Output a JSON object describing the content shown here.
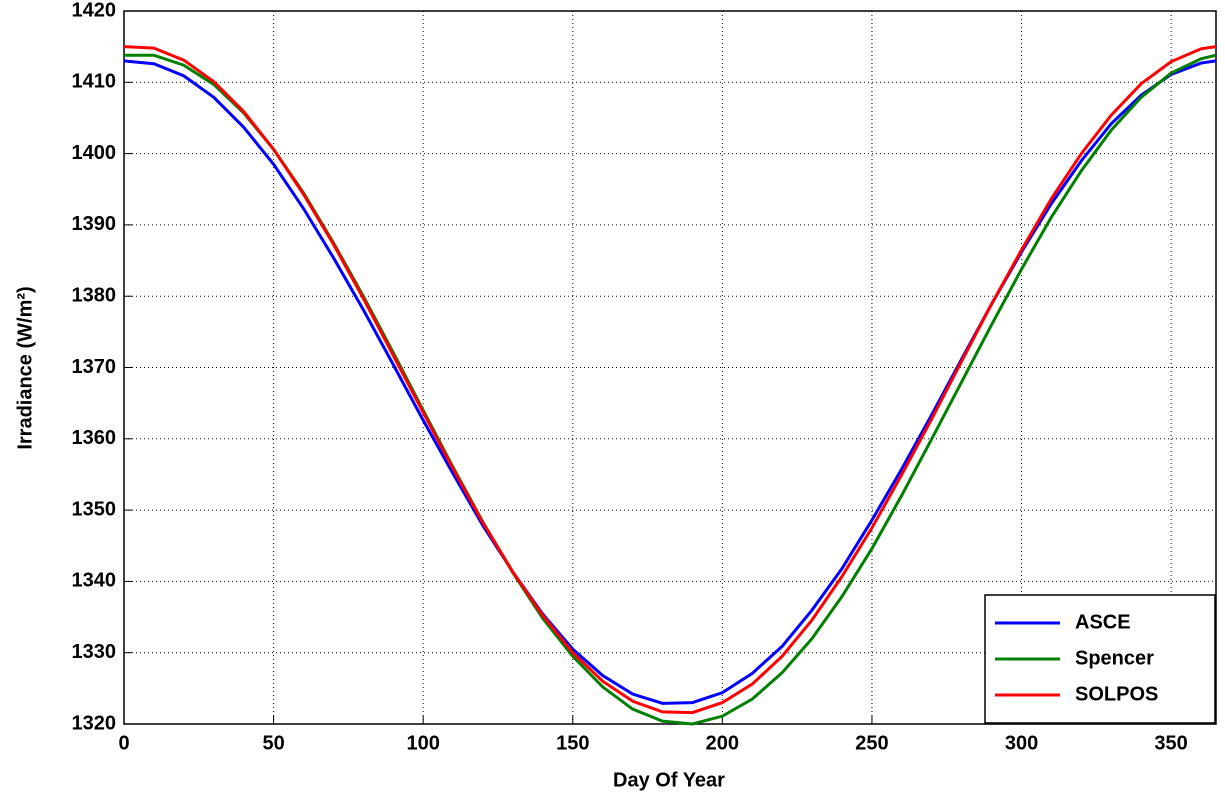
{
  "chart_data": {
    "type": "line",
    "xlabel": "Day Of Year",
    "ylabel": "Irradiance (W/m²)",
    "x": [
      0,
      10,
      20,
      30,
      40,
      50,
      60,
      70,
      80,
      90,
      100,
      110,
      120,
      130,
      140,
      150,
      160,
      170,
      180,
      190,
      200,
      210,
      220,
      230,
      240,
      250,
      260,
      270,
      280,
      290,
      300,
      310,
      320,
      330,
      340,
      350,
      360,
      365
    ],
    "series": [
      {
        "name": "ASCE",
        "color": "#0000ff",
        "values": [
          1413.0,
          1412.6,
          1410.9,
          1407.9,
          1403.7,
          1398.5,
          1392.3,
          1385.4,
          1378.1,
          1370.4,
          1362.6,
          1355.1,
          1347.8,
          1341.3,
          1335.4,
          1330.5,
          1326.8,
          1324.2,
          1322.9,
          1323.0,
          1324.4,
          1327.1,
          1330.9,
          1336.0,
          1341.8,
          1348.6,
          1355.8,
          1363.4,
          1371.2,
          1378.9,
          1386.2,
          1393.0,
          1399.0,
          1404.2,
          1408.2,
          1411.1,
          1412.7,
          1413.0
        ]
      },
      {
        "name": "Spencer",
        "color": "#008000",
        "values": [
          1413.8,
          1413.8,
          1412.4,
          1409.7,
          1405.7,
          1400.6,
          1394.5,
          1387.5,
          1380.0,
          1372.1,
          1364.0,
          1356.0,
          1348.3,
          1341.2,
          1334.8,
          1329.5,
          1325.2,
          1322.1,
          1320.4,
          1320.0,
          1321.1,
          1323.5,
          1327.2,
          1332.0,
          1337.9,
          1344.6,
          1352.1,
          1360.0,
          1368.0,
          1376.0,
          1383.8,
          1391.1,
          1397.6,
          1403.3,
          1407.9,
          1411.3,
          1413.3,
          1413.8
        ]
      },
      {
        "name": "SOLPOS",
        "color": "#ff0000",
        "values": [
          1415.0,
          1414.8,
          1413.1,
          1410.1,
          1405.9,
          1400.6,
          1394.3,
          1387.3,
          1379.7,
          1371.7,
          1363.7,
          1355.8,
          1348.2,
          1341.3,
          1335.2,
          1330.0,
          1326.0,
          1323.2,
          1321.7,
          1321.6,
          1323.0,
          1325.6,
          1329.5,
          1334.6,
          1340.7,
          1347.5,
          1355.0,
          1362.8,
          1370.9,
          1378.9,
          1386.5,
          1393.7,
          1400.0,
          1405.4,
          1409.8,
          1412.9,
          1414.7,
          1415.0
        ]
      }
    ],
    "xlim": [
      0,
      365
    ],
    "xticks": [
      0,
      50,
      100,
      150,
      200,
      250,
      300,
      350
    ],
    "ylim": [
      1320,
      1420
    ],
    "yticks": [
      1320,
      1330,
      1340,
      1350,
      1360,
      1370,
      1380,
      1390,
      1400,
      1410,
      1420
    ],
    "grid": true,
    "legend": "lower right"
  }
}
